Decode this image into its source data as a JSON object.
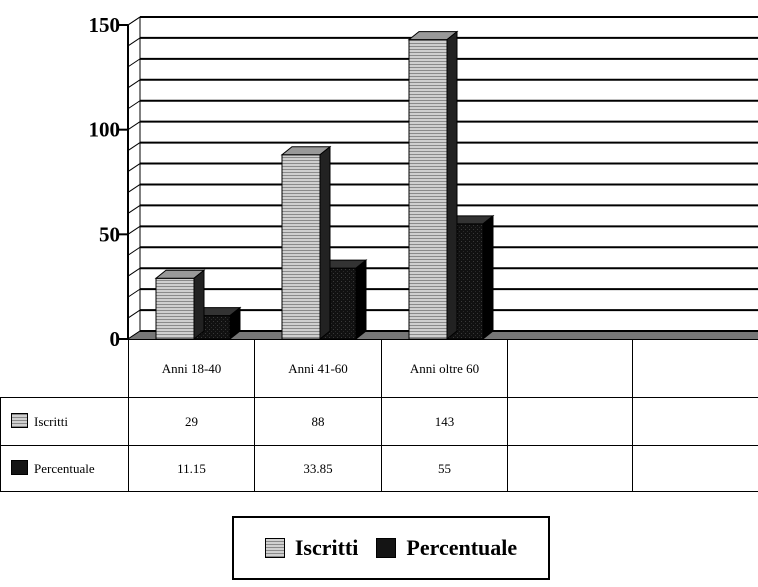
{
  "chart_data": {
    "type": "bar",
    "categories": [
      "Anni 18-40",
      "Anni 41-60",
      "Anni oltre 60",
      "",
      ""
    ],
    "series": [
      {
        "name": "Iscritti",
        "values": [
          29,
          88,
          143,
          null,
          null
        ]
      },
      {
        "name": "Percentuale",
        "values": [
          11.15,
          33.85,
          55,
          null,
          null
        ]
      }
    ],
    "ylim": [
      0,
      150
    ],
    "y_ticks": [
      "150",
      "100",
      "50",
      "0"
    ],
    "y_tick_values": [
      150,
      100,
      50,
      0
    ],
    "table_rows": [
      {
        "label": "Iscritti",
        "cells": [
          "29",
          "88",
          "143",
          "",
          ""
        ]
      },
      {
        "label": "Percentuale",
        "cells": [
          "11.15",
          "33.85",
          "55",
          "",
          ""
        ]
      }
    ],
    "grid": true,
    "legend_placement": "bottom",
    "legend": [
      "Iscritti",
      "Percentuale"
    ],
    "colors": {
      "iscritti": "#bdbdbd",
      "percentuale": "#151515"
    }
  }
}
